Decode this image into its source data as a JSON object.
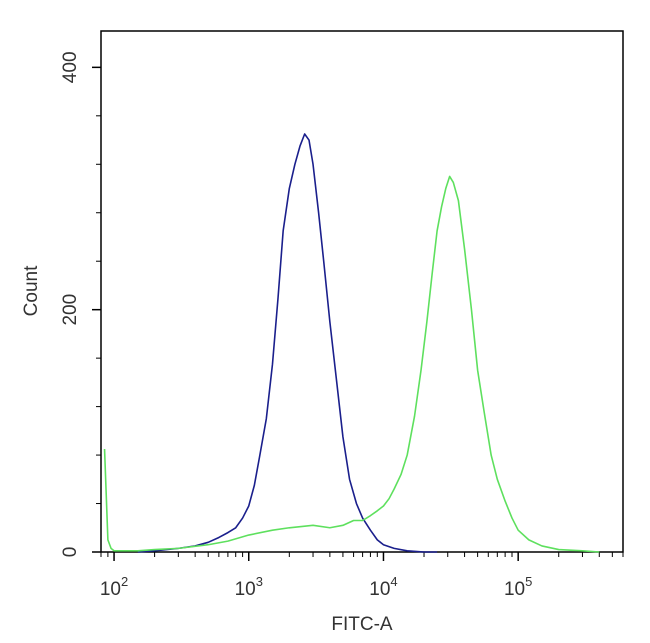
{
  "chart_data": {
    "type": "line",
    "title": "",
    "xlabel": "FITC-A",
    "ylabel": "Count",
    "x_scale": "log",
    "xlim": [
      80,
      600000
    ],
    "ylim": [
      0,
      430
    ],
    "x_ticks": [
      {
        "value": 100,
        "base": "10",
        "exp": "2"
      },
      {
        "value": 1000,
        "base": "10",
        "exp": "3"
      },
      {
        "value": 10000,
        "base": "10",
        "exp": "4"
      },
      {
        "value": 100000,
        "base": "10",
        "exp": "5"
      }
    ],
    "y_ticks": [
      {
        "value": 0,
        "label": "0"
      },
      {
        "value": 200,
        "label": "200"
      },
      {
        "value": 400,
        "label": "400"
      }
    ],
    "y_minor_ticks": [
      40,
      80,
      120,
      160,
      240,
      280,
      320,
      360
    ],
    "grid": false,
    "series": [
      {
        "color": "#1a1f8c",
        "x": [
          150,
          200,
          300,
          400,
          500,
          600,
          700,
          800,
          900,
          1000,
          1100,
          1200,
          1350,
          1500,
          1650,
          1800,
          2000,
          2200,
          2400,
          2600,
          2800,
          3000,
          3300,
          3600,
          4000,
          4500,
          5000,
          5600,
          6300,
          7000,
          8000,
          9000,
          10000,
          12000,
          15000,
          20000,
          25000
        ],
        "y": [
          0,
          1,
          3,
          5,
          8,
          12,
          16,
          20,
          28,
          38,
          55,
          78,
          110,
          155,
          210,
          265,
          300,
          320,
          335,
          345,
          340,
          320,
          280,
          240,
          190,
          140,
          95,
          60,
          40,
          28,
          18,
          10,
          6,
          3,
          1,
          0,
          0
        ]
      },
      {
        "color": "#5ee05e",
        "x": [
          85,
          90,
          95,
          100,
          110,
          150,
          200,
          300,
          500,
          700,
          1000,
          1500,
          2000,
          3000,
          4000,
          5000,
          6000,
          7000,
          8000,
          9000,
          10000,
          11000,
          12000,
          13500,
          15000,
          17000,
          19000,
          21000,
          23000,
          25000,
          27000,
          29000,
          31000,
          33000,
          36000,
          40000,
          45000,
          50000,
          56000,
          63000,
          70000,
          80000,
          90000,
          100000,
          120000,
          150000,
          200000,
          300000,
          400000
        ],
        "y": [
          85,
          10,
          3,
          1,
          1,
          1,
          2,
          3,
          6,
          9,
          14,
          18,
          20,
          22,
          20,
          22,
          26,
          26,
          30,
          34,
          38,
          44,
          52,
          64,
          80,
          112,
          150,
          190,
          230,
          265,
          285,
          300,
          310,
          305,
          290,
          250,
          200,
          150,
          115,
          80,
          60,
          42,
          28,
          18,
          10,
          5,
          2,
          1,
          0
        ]
      }
    ]
  }
}
